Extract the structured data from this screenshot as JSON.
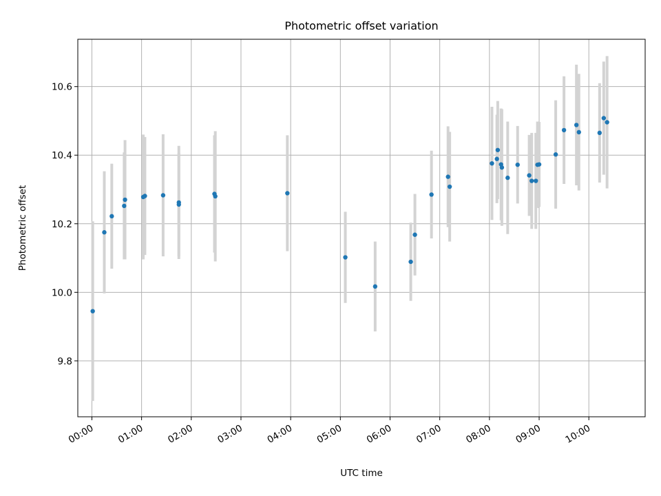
{
  "chart_data": {
    "type": "scatter",
    "title": "Photometric offset variation",
    "xlabel": "UTC time",
    "ylabel": "Photometric offset",
    "x_unit": "UTC HH:MM",
    "xlim": [
      "23:43",
      "11:08"
    ],
    "ylim": [
      9.637,
      10.738
    ],
    "x_ticks": [
      "00:00",
      "01:00",
      "02:00",
      "03:00",
      "04:00",
      "05:00",
      "06:00",
      "07:00",
      "08:00",
      "09:00",
      "10:00"
    ],
    "y_ticks": [
      "9.8",
      "10.0",
      "10.2",
      "10.4",
      "10.6"
    ],
    "grid": true,
    "colors": {
      "points": "#1f77b4",
      "errorbars": "#d3d3d3",
      "grid": "#b0b0b0"
    },
    "points": [
      {
        "x": "00:01",
        "y": 9.945,
        "err": 0.262
      },
      {
        "x": "00:15",
        "y": 10.175,
        "err": 0.178
      },
      {
        "x": "00:24",
        "y": 10.222,
        "err": 0.153
      },
      {
        "x": "00:39",
        "y": 10.252,
        "err": 0.156
      },
      {
        "x": "00:40",
        "y": 10.27,
        "err": 0.174
      },
      {
        "x": "01:02",
        "y": 10.278,
        "err": 0.182
      },
      {
        "x": "01:04",
        "y": 10.281,
        "err": 0.172
      },
      {
        "x": "01:26",
        "y": 10.283,
        "err": 0.178
      },
      {
        "x": "01:45",
        "y": 10.262,
        "err": 0.165
      },
      {
        "x": "01:45",
        "y": 10.256,
        "err": 0.15
      },
      {
        "x": "02:28",
        "y": 10.287,
        "err": 0.171
      },
      {
        "x": "02:29",
        "y": 10.28,
        "err": 0.19
      },
      {
        "x": "03:56",
        "y": 10.289,
        "err": 0.169
      },
      {
        "x": "05:06",
        "y": 10.102,
        "err": 0.133
      },
      {
        "x": "05:42",
        "y": 10.017,
        "err": 0.131
      },
      {
        "x": "06:25",
        "y": 10.089,
        "err": 0.114
      },
      {
        "x": "06:30",
        "y": 10.168,
        "err": 0.119
      },
      {
        "x": "06:50",
        "y": 10.285,
        "err": 0.128
      },
      {
        "x": "07:10",
        "y": 10.337,
        "err": 0.147
      },
      {
        "x": "07:12",
        "y": 10.308,
        "err": 0.16
      },
      {
        "x": "08:03",
        "y": 10.376,
        "err": 0.165
      },
      {
        "x": "08:09",
        "y": 10.389,
        "err": 0.129
      },
      {
        "x": "08:10",
        "y": 10.415,
        "err": 0.143
      },
      {
        "x": "08:14",
        "y": 10.373,
        "err": 0.163
      },
      {
        "x": "08:15",
        "y": 10.364,
        "err": 0.17
      },
      {
        "x": "08:22",
        "y": 10.334,
        "err": 0.164
      },
      {
        "x": "08:34",
        "y": 10.372,
        "err": 0.113
      },
      {
        "x": "08:48",
        "y": 10.341,
        "err": 0.118
      },
      {
        "x": "08:51",
        "y": 10.325,
        "err": 0.14
      },
      {
        "x": "08:56",
        "y": 10.325,
        "err": 0.14
      },
      {
        "x": "08:58",
        "y": 10.372,
        "err": 0.126
      },
      {
        "x": "09:00",
        "y": 10.373,
        "err": 0.124
      },
      {
        "x": "09:20",
        "y": 10.402,
        "err": 0.158
      },
      {
        "x": "09:30",
        "y": 10.473,
        "err": 0.157
      },
      {
        "x": "09:45",
        "y": 10.488,
        "err": 0.176
      },
      {
        "x": "09:48",
        "y": 10.467,
        "err": 0.17
      },
      {
        "x": "10:13",
        "y": 10.465,
        "err": 0.145
      },
      {
        "x": "10:18",
        "y": 10.508,
        "err": 0.165
      },
      {
        "x": "10:22",
        "y": 10.496,
        "err": 0.193
      }
    ]
  }
}
